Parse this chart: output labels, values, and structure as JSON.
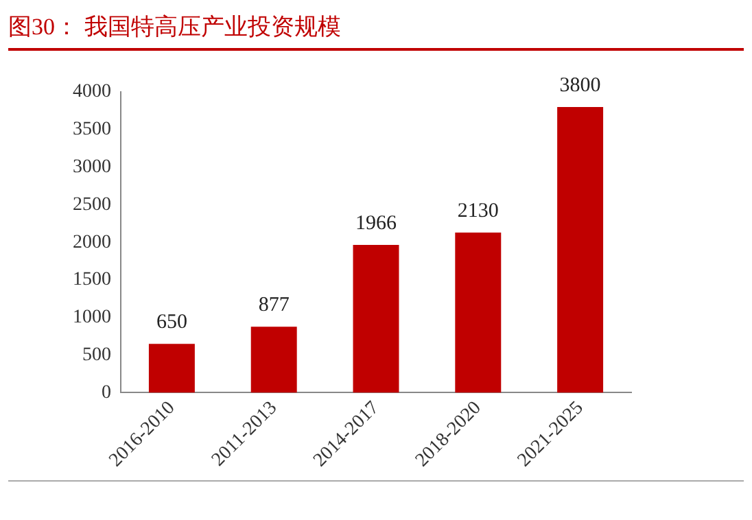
{
  "chart_data": {
    "type": "bar",
    "title": "图30：  我国特高压产业投资规模",
    "categories": [
      "2016-2010",
      "2011-2013",
      "2014-2017",
      "2018-2020",
      "2021-2025"
    ],
    "values": [
      650,
      877,
      1966,
      2130,
      3800
    ],
    "color": "#c00000",
    "ylim": [
      0,
      4000
    ],
    "yticks": [
      0,
      500,
      1000,
      1500,
      2000,
      2500,
      3000,
      3500,
      4000
    ],
    "grid": false,
    "legend": false,
    "data_labels": true
  }
}
